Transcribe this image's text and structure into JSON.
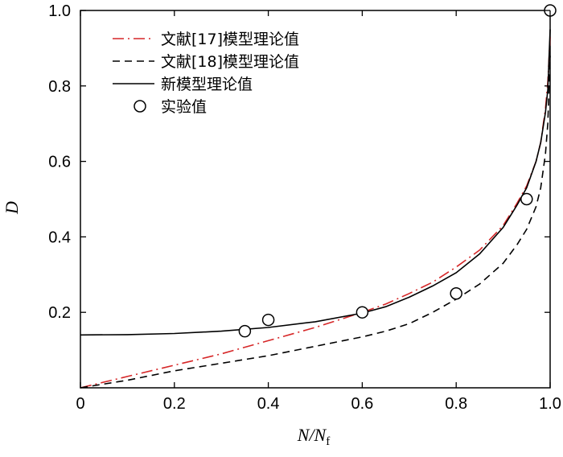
{
  "chart_data": {
    "type": "line",
    "xlabel_main": "N",
    "xlabel_rest": "/N",
    "xlabel_sub": "f",
    "ylabel": "D",
    "xlim": [
      0,
      1.0
    ],
    "ylim": [
      0,
      1.0
    ],
    "x_ticks": [
      {
        "value": 0,
        "label": "0"
      },
      {
        "value": 0.2,
        "label": "0.2"
      },
      {
        "value": 0.4,
        "label": "0.4"
      },
      {
        "value": 0.6,
        "label": "0.6"
      },
      {
        "value": 0.8,
        "label": "0.8"
      },
      {
        "value": 1.0,
        "label": "1.0"
      }
    ],
    "y_ticks": [
      {
        "value": 0.2,
        "label": "0.2"
      },
      {
        "value": 0.4,
        "label": "0.4"
      },
      {
        "value": 0.6,
        "label": "0.6"
      },
      {
        "value": 0.8,
        "label": "0.8"
      },
      {
        "value": 1.0,
        "label": "1.0"
      }
    ],
    "grid": false,
    "legend_position": "top-left",
    "series": [
      {
        "name": "文献[17]模型理论值",
        "style": "dashdot",
        "color": "#d62728",
        "x": [
          0,
          0.1,
          0.2,
          0.3,
          0.4,
          0.5,
          0.6,
          0.65,
          0.7,
          0.75,
          0.8,
          0.85,
          0.9,
          0.93,
          0.95,
          0.97,
          0.98,
          0.99,
          0.995,
          1.0
        ],
        "y": [
          0,
          0.03,
          0.06,
          0.09,
          0.125,
          0.16,
          0.2,
          0.222,
          0.25,
          0.28,
          0.32,
          0.365,
          0.43,
          0.49,
          0.535,
          0.6,
          0.65,
          0.74,
          0.81,
          0.93
        ]
      },
      {
        "name": "文献[18]模型理论值",
        "style": "dashed",
        "color": "#000000",
        "x": [
          0,
          0.1,
          0.2,
          0.3,
          0.4,
          0.5,
          0.6,
          0.65,
          0.7,
          0.75,
          0.8,
          0.85,
          0.9,
          0.93,
          0.95,
          0.97,
          0.98,
          0.99,
          0.995,
          1.0
        ],
        "y": [
          0,
          0.02,
          0.045,
          0.065,
          0.085,
          0.11,
          0.135,
          0.15,
          0.17,
          0.2,
          0.235,
          0.275,
          0.33,
          0.38,
          0.42,
          0.48,
          0.53,
          0.62,
          0.7,
          0.88
        ]
      },
      {
        "name": "新模型理论值",
        "style": "solid",
        "color": "#000000",
        "x": [
          0,
          0.1,
          0.2,
          0.3,
          0.4,
          0.5,
          0.6,
          0.65,
          0.7,
          0.75,
          0.8,
          0.85,
          0.9,
          0.93,
          0.95,
          0.97,
          0.98,
          0.99,
          0.995,
          1.0
        ],
        "y": [
          0.14,
          0.141,
          0.144,
          0.15,
          0.16,
          0.175,
          0.198,
          0.215,
          0.24,
          0.27,
          0.305,
          0.355,
          0.425,
          0.485,
          0.53,
          0.6,
          0.65,
          0.73,
          0.79,
          0.95
        ]
      }
    ],
    "experimental": {
      "name": "实验值",
      "x": [
        0.35,
        0.4,
        0.6,
        0.8,
        0.95,
        1.0
      ],
      "y": [
        0.15,
        0.18,
        0.2,
        0.25,
        0.5,
        1.0
      ]
    }
  }
}
